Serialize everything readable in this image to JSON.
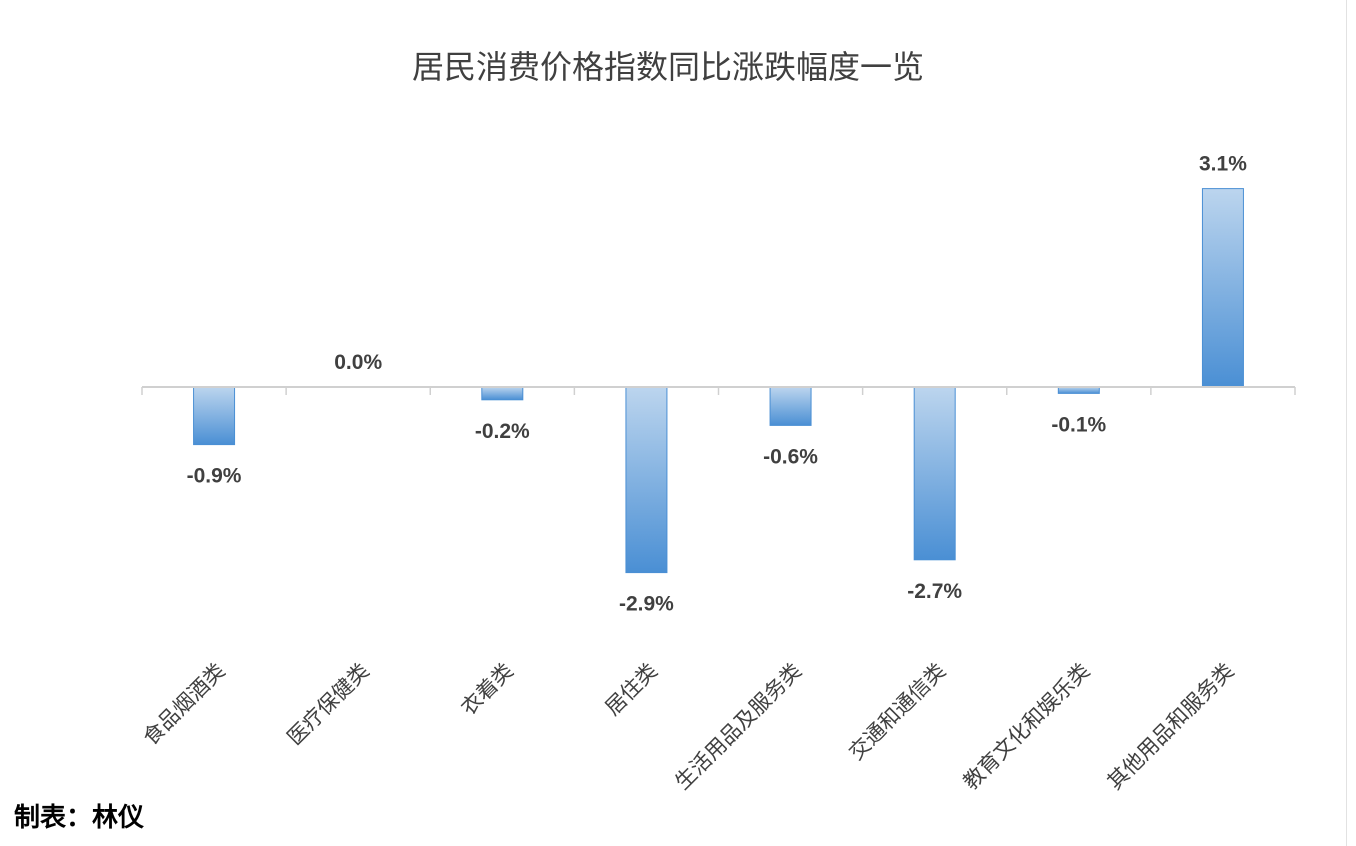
{
  "chart_data": {
    "type": "bar",
    "title": "居民消费价格指数同比涨跌幅度一览",
    "xlabel": "",
    "ylabel": "",
    "categories": [
      "食品烟酒类",
      "医疗保健类",
      "衣着类",
      "居住类",
      "生活用品及服务类",
      "交通和通信类",
      "教育文化和娱乐类",
      "其他用品和服务类"
    ],
    "values": [
      -0.9,
      0.0,
      -0.2,
      -2.9,
      -0.6,
      -2.7,
      -0.1,
      3.1
    ],
    "value_labels": [
      "-0.9%",
      "0.0%",
      "-0.2%",
      "-2.9%",
      "-0.6%",
      "-2.7%",
      "-0.1%",
      "3.1%"
    ],
    "ylim": [
      -3.0,
      3.3
    ],
    "grid": false,
    "legend": "none",
    "bar_color_top": "#bcd5ee",
    "bar_color_bottom": "#4a8fd4"
  },
  "credit": "制表：林仪"
}
